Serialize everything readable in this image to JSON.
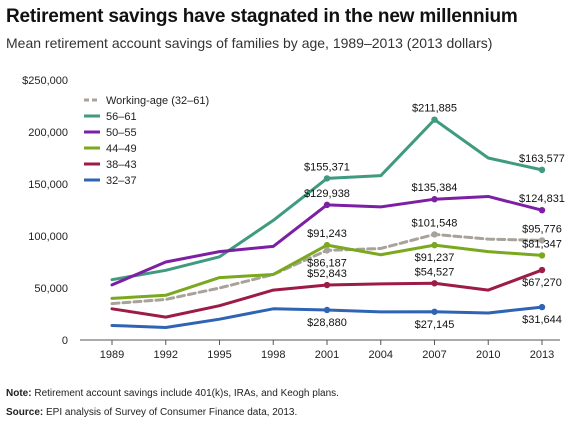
{
  "title": "Retirement savings have stagnated in the new millennium",
  "subtitle": "Mean retirement account savings of families by age, 1989–2013 (2013 dollars)",
  "note": {
    "label": "Note:",
    "text": " Retirement account savings include 401(k)s, IRAs, and Keogh plans."
  },
  "source": {
    "label": "Source:",
    "text": " EPI analysis of  Survey of Consumer Finance data, 2013."
  },
  "chart_data": {
    "type": "line",
    "x": [
      1989,
      1992,
      1995,
      1998,
      2001,
      2004,
      2007,
      2010,
      2013
    ],
    "ylim": [
      0,
      250000
    ],
    "yticks": [
      0,
      50000,
      100000,
      150000,
      200000,
      250000
    ],
    "ytick_labels": [
      "0",
      "50,000",
      "100,000",
      "150,000",
      "200,000",
      "$250,000"
    ],
    "grid": false,
    "legend_position": "top-left",
    "series": [
      {
        "name": "Working-age (32–61)",
        "color": "#a8a39a",
        "dashed": true,
        "values": [
          35000,
          39000,
          50000,
          63000,
          86187,
          88000,
          101548,
          97000,
          95776
        ]
      },
      {
        "name": "56–61",
        "color": "#3f9a7f",
        "dashed": false,
        "values": [
          58000,
          67000,
          80000,
          115000,
          155371,
          158000,
          211885,
          175000,
          163577
        ]
      },
      {
        "name": "50–55",
        "color": "#7d1fa5",
        "dashed": false,
        "values": [
          53000,
          75000,
          85000,
          90000,
          129938,
          128000,
          135384,
          138000,
          124831
        ]
      },
      {
        "name": "44–49",
        "color": "#7aa81e",
        "dashed": false,
        "values": [
          40000,
          43000,
          60000,
          63000,
          91243,
          82000,
          91237,
          85000,
          81347
        ]
      },
      {
        "name": "38–43",
        "color": "#9c1b47",
        "dashed": false,
        "values": [
          30000,
          22000,
          33000,
          48000,
          52843,
          54000,
          54527,
          48000,
          67270
        ]
      },
      {
        "name": "32–37",
        "color": "#2f64b4",
        "dashed": false,
        "values": [
          14000,
          12000,
          20000,
          30000,
          28880,
          27000,
          27145,
          26000,
          31644
        ]
      }
    ],
    "annotations": [
      {
        "series": 1,
        "index": 4,
        "text": "$155,371",
        "pos": "above"
      },
      {
        "series": 1,
        "index": 6,
        "text": "$211,885",
        "pos": "above"
      },
      {
        "series": 1,
        "index": 8,
        "text": "$163,577",
        "pos": "above"
      },
      {
        "series": 2,
        "index": 4,
        "text": "$129,938",
        "pos": "above"
      },
      {
        "series": 2,
        "index": 6,
        "text": "$135,384",
        "pos": "above"
      },
      {
        "series": 2,
        "index": 8,
        "text": "$124,831",
        "pos": "above"
      },
      {
        "series": 0,
        "index": 6,
        "text": "$101,548",
        "pos": "above"
      },
      {
        "series": 0,
        "index": 8,
        "text": "$95,776",
        "pos": "above"
      },
      {
        "series": 3,
        "index": 4,
        "text": "$91,243",
        "pos": "above"
      },
      {
        "series": 0,
        "index": 4,
        "text": "$86,187",
        "pos": "below"
      },
      {
        "series": 3,
        "index": 6,
        "text": "$91,237",
        "pos": "below"
      },
      {
        "series": 3,
        "index": 8,
        "text": "$81,347",
        "pos": "above"
      },
      {
        "series": 4,
        "index": 4,
        "text": "$52,843",
        "pos": "above"
      },
      {
        "series": 4,
        "index": 6,
        "text": "$54,527",
        "pos": "above"
      },
      {
        "series": 4,
        "index": 8,
        "text": "$67,270",
        "pos": "below"
      },
      {
        "series": 5,
        "index": 4,
        "text": "$28,880",
        "pos": "below"
      },
      {
        "series": 5,
        "index": 6,
        "text": "$27,145",
        "pos": "below"
      },
      {
        "series": 5,
        "index": 8,
        "text": "$31,644",
        "pos": "below"
      }
    ]
  }
}
